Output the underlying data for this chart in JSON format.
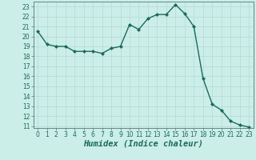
{
  "x": [
    0,
    1,
    2,
    3,
    4,
    5,
    6,
    7,
    8,
    9,
    10,
    11,
    12,
    13,
    14,
    15,
    16,
    17,
    18,
    19,
    20,
    21,
    22,
    23
  ],
  "y": [
    20.5,
    19.2,
    19.0,
    19.0,
    18.5,
    18.5,
    18.5,
    18.3,
    18.8,
    19.0,
    21.2,
    20.7,
    21.8,
    22.2,
    22.2,
    23.2,
    22.3,
    21.0,
    15.8,
    13.2,
    12.6,
    11.5,
    11.1,
    10.9
  ],
  "line_color": "#1a6b5a",
  "marker": "D",
  "marker_size": 2.0,
  "bg_color": "#cceee8",
  "grid_color": "#b8ddd6",
  "xlabel": "Humidex (Indice chaleur)",
  "xlim": [
    -0.5,
    23.5
  ],
  "ylim": [
    10.8,
    23.5
  ],
  "yticks": [
    11,
    12,
    13,
    14,
    15,
    16,
    17,
    18,
    19,
    20,
    21,
    22,
    23
  ],
  "xticks": [
    0,
    1,
    2,
    3,
    4,
    5,
    6,
    7,
    8,
    9,
    10,
    11,
    12,
    13,
    14,
    15,
    16,
    17,
    18,
    19,
    20,
    21,
    22,
    23
  ],
  "tick_label_fontsize": 5.5,
  "xlabel_fontsize": 7.5,
  "line_width": 1.0
}
